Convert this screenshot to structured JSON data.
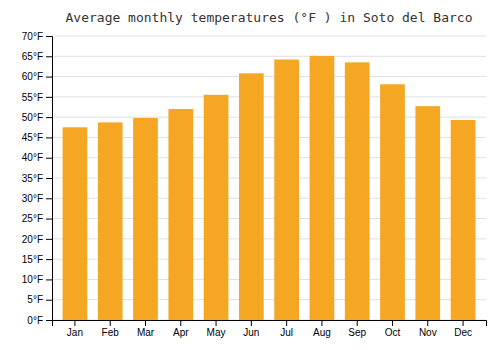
{
  "chart_data": {
    "type": "bar",
    "title": "Average monthly temperatures (°F ) in Soto del Barco",
    "categories": [
      "Jan",
      "Feb",
      "Mar",
      "Apr",
      "May",
      "Jun",
      "Jul",
      "Aug",
      "Sep",
      "Oct",
      "Nov",
      "Dec"
    ],
    "values": [
      47.5,
      48.7,
      49.8,
      52.0,
      55.5,
      60.8,
      64.2,
      65.1,
      63.5,
      58.1,
      52.7,
      49.3
    ],
    "color": "#F5A623",
    "ylim": [
      0,
      70
    ],
    "yticks": [
      {
        "value": 0,
        "label": "0°F"
      },
      {
        "value": 5,
        "label": "5°F"
      },
      {
        "value": 10,
        "label": "10°F"
      },
      {
        "value": 15,
        "label": "15°F"
      },
      {
        "value": 20,
        "label": "20°F"
      },
      {
        "value": 25,
        "label": "25°F"
      },
      {
        "value": 30,
        "label": "30°F"
      },
      {
        "value": 35,
        "label": "35°F"
      },
      {
        "value": 40,
        "label": "40°F"
      },
      {
        "value": 45,
        "label": "45°F"
      },
      {
        "value": 50,
        "label": "50°F"
      },
      {
        "value": 55,
        "label": "55°F"
      },
      {
        "value": 60,
        "label": "60°F"
      },
      {
        "value": 65,
        "label": "65°F"
      },
      {
        "value": 70,
        "label": "70°F"
      }
    ],
    "grid": true
  }
}
